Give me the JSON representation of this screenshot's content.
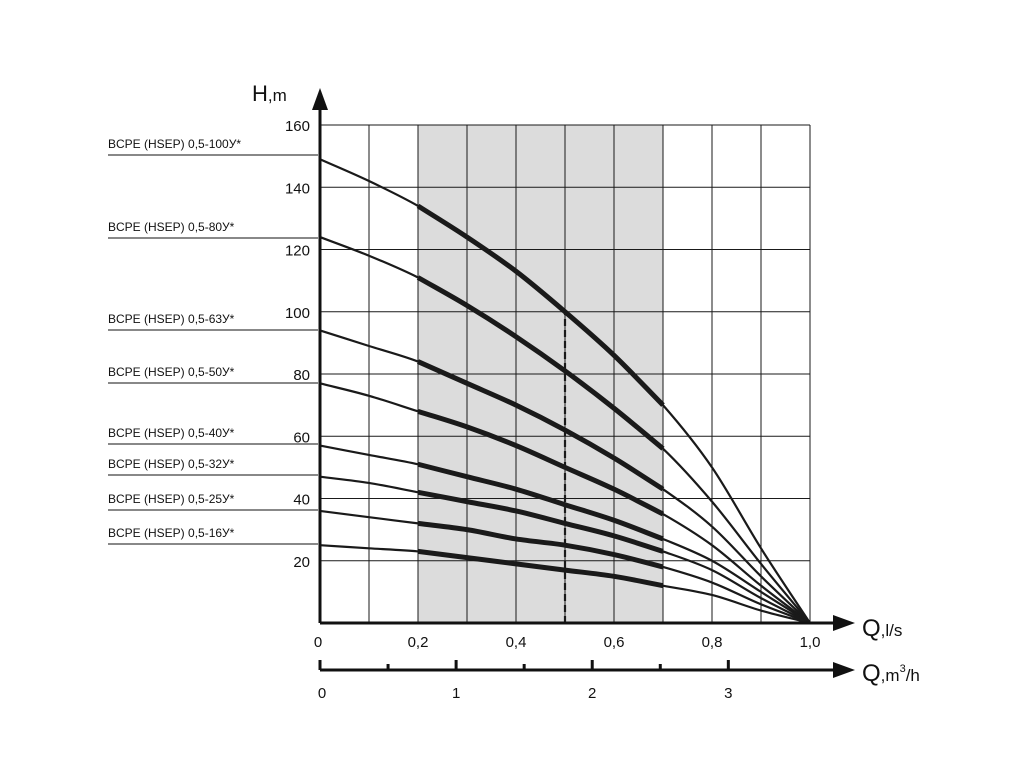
{
  "chart_data": {
    "type": "line",
    "y_axis": {
      "title_main": "H",
      "title_unit": ",m",
      "range": [
        0,
        160
      ],
      "ticks": [
        20,
        40,
        60,
        80,
        100,
        120,
        140,
        160
      ],
      "tick_labels": [
        "20",
        "40",
        "60",
        "80",
        "100",
        "120",
        "140",
        "160"
      ]
    },
    "x_axis": {
      "title_main": "Q",
      "title_unit": ",l/s",
      "range": [
        0,
        1.0
      ],
      "ticks": [
        0,
        0.2,
        0.4,
        0.6,
        0.8,
        1.0
      ],
      "tick_labels": [
        "0",
        "0,2",
        "0,4",
        "0,6",
        "0,8",
        "1,0"
      ]
    },
    "x_axis_secondary": {
      "title_main": "Q",
      "title_unit": ",m",
      "title_sup": "3",
      "title_tail": "/h",
      "ticks": [
        0,
        1,
        2,
        3
      ],
      "tick_labels": [
        "0",
        "1",
        "2",
        "3"
      ]
    },
    "grid": true,
    "grid_step_x": 0.1,
    "grid_step_y": 20,
    "recommended_range_l_s": [
      0.2,
      0.7
    ],
    "nominal_flow_l_s": 0.5,
    "x": [
      0,
      0.1,
      0.2,
      0.3,
      0.4,
      0.5,
      0.6,
      0.7,
      0.8,
      0.9,
      1.0
    ],
    "series": [
      {
        "name": "BCPE (HSEP) 0,5-100У*",
        "values": [
          149,
          142,
          134,
          124,
          113,
          100,
          86,
          70,
          50,
          24,
          0
        ]
      },
      {
        "name": "BCPE (HSEP) 0,5-80У*",
        "values": [
          124,
          118,
          111,
          102,
          92,
          81,
          69,
          56,
          39,
          19,
          0
        ]
      },
      {
        "name": "BCPE (HSEP) 0,5-63У*",
        "values": [
          94,
          89,
          84,
          77,
          70,
          62,
          53,
          43,
          31,
          15,
          0
        ]
      },
      {
        "name": "BCPE (HSEP) 0,5-50У*",
        "values": [
          77,
          73,
          68,
          63,
          57,
          50,
          43,
          35,
          25,
          12,
          0
        ]
      },
      {
        "name": "BCPE (HSEP) 0,5-40У*",
        "values": [
          57,
          54,
          51,
          47,
          43,
          38,
          33,
          27,
          20,
          10,
          0
        ]
      },
      {
        "name": "BCPE (HSEP) 0,5-32У*",
        "values": [
          47,
          45,
          42,
          39,
          36,
          32,
          28,
          23,
          17,
          8,
          0
        ]
      },
      {
        "name": "BCPE (HSEP) 0,5-25У*",
        "values": [
          36,
          34,
          32,
          30,
          27,
          25,
          22,
          18,
          13,
          6,
          0
        ]
      },
      {
        "name": "BCPE (HSEP) 0,5-16У*",
        "values": [
          25,
          24,
          23,
          21,
          19,
          17,
          15,
          12,
          9,
          4,
          0
        ]
      }
    ],
    "colors": {
      "curve": "#1a1a1a",
      "grid": "#1a1a1a",
      "shade": "#dcdcdc",
      "axis": "#111111"
    }
  }
}
